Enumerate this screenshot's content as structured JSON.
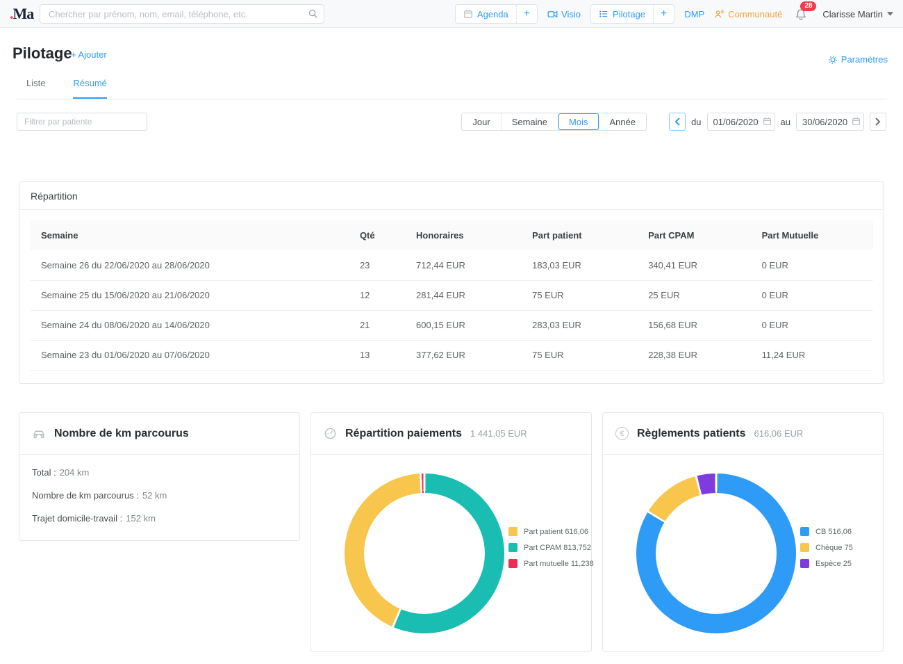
{
  "navbar": {
    "logo_dot": ".",
    "logo_text": "Ma",
    "search_placeholder": "Chercher par prénom, nom, email, téléphone, etc.",
    "agenda_label": "Agenda",
    "agenda_plus": "+",
    "visio_label": "Visio",
    "pilotage_label": "Pilotage",
    "pilotage_plus": "+",
    "dmp_label": "DMP",
    "communaute_label": "Communauté",
    "notifications_count": "28",
    "user_name": "Clarisse Martin"
  },
  "header": {
    "title": "Pilotage",
    "add_label": "+ Ajouter",
    "settings_label": "Paramètres"
  },
  "tabs": [
    {
      "label": "Liste",
      "active": false
    },
    {
      "label": "Résumé",
      "active": true
    }
  ],
  "filters": {
    "patient_filter_placeholder": "Filtrer par patiente",
    "period_options": [
      "Jour",
      "Semaine",
      "Mois",
      "Année"
    ],
    "period_selected": "Mois",
    "du_label": "du",
    "au_label": "au",
    "date_from": "01/06/2020",
    "date_to": "30/06/2020"
  },
  "table": {
    "title": "Répartition",
    "columns": [
      "Semaine",
      "Qté",
      "Honoraires",
      "Part patient",
      "Part CPAM",
      "Part Mutuelle"
    ],
    "rows": [
      [
        "Semaine 26 du 22/06/2020 au 28/06/2020",
        "23",
        "712,44 EUR",
        "183,03 EUR",
        "340,41 EUR",
        "0 EUR"
      ],
      [
        "Semaine 25 du 15/06/2020 au 21/06/2020",
        "12",
        "281,44 EUR",
        "75 EUR",
        "25 EUR",
        "0 EUR"
      ],
      [
        "Semaine 24 du 08/06/2020 au 14/06/2020",
        "21",
        "600,15 EUR",
        "283,03 EUR",
        "156,68 EUR",
        "0 EUR"
      ],
      [
        "Semaine 23 du 01/06/2020 au 07/06/2020",
        "13",
        "377,62 EUR",
        "75 EUR",
        "228,38 EUR",
        "11,24 EUR"
      ]
    ]
  },
  "km_card": {
    "title": "Nombre de km parcourus",
    "lines": [
      {
        "label": "Total :",
        "value": "204 km"
      },
      {
        "label": "Nombre de km parcourus :",
        "value": "52 km"
      },
      {
        "label": "Trajet domicile-travail :",
        "value": "152 km"
      }
    ]
  },
  "chart_data": [
    {
      "type": "pie",
      "donut": true,
      "title": "Répartition paiements",
      "total_label": "1 441,05 EUR",
      "legend_position": "right",
      "segments": [
        {
          "label": "Part patient",
          "value": 616.06,
          "display": "Part patient 616,06",
          "color": "#F8C54D"
        },
        {
          "label": "Part CPAM",
          "value": 813.752,
          "display": "Part CPAM 813,752",
          "color": "#19BDB2"
        },
        {
          "label": "Part mutuelle",
          "value": 11.238,
          "display": "Part mutuelle 11,238",
          "color": "#EE2D55"
        }
      ],
      "draw_order": [
        1,
        0,
        2
      ]
    },
    {
      "type": "pie",
      "donut": true,
      "title": "Règlements patients",
      "total_label": "616,06 EUR",
      "legend_position": "right",
      "segments": [
        {
          "label": "CB",
          "value": 516.06,
          "display": "CB 516,06",
          "color": "#2E9BF7"
        },
        {
          "label": "Chèque",
          "value": 75,
          "display": "Chèque 75",
          "color": "#F8C54D"
        },
        {
          "label": "Espèce",
          "value": 25,
          "display": "Espèce 25",
          "color": "#7D3BE0"
        }
      ],
      "draw_order": [
        0,
        1,
        2
      ]
    }
  ],
  "colors": {
    "accent_blue": "#2f9bf4",
    "orange": "#f2a23c",
    "badge_red": "#e8414d"
  }
}
